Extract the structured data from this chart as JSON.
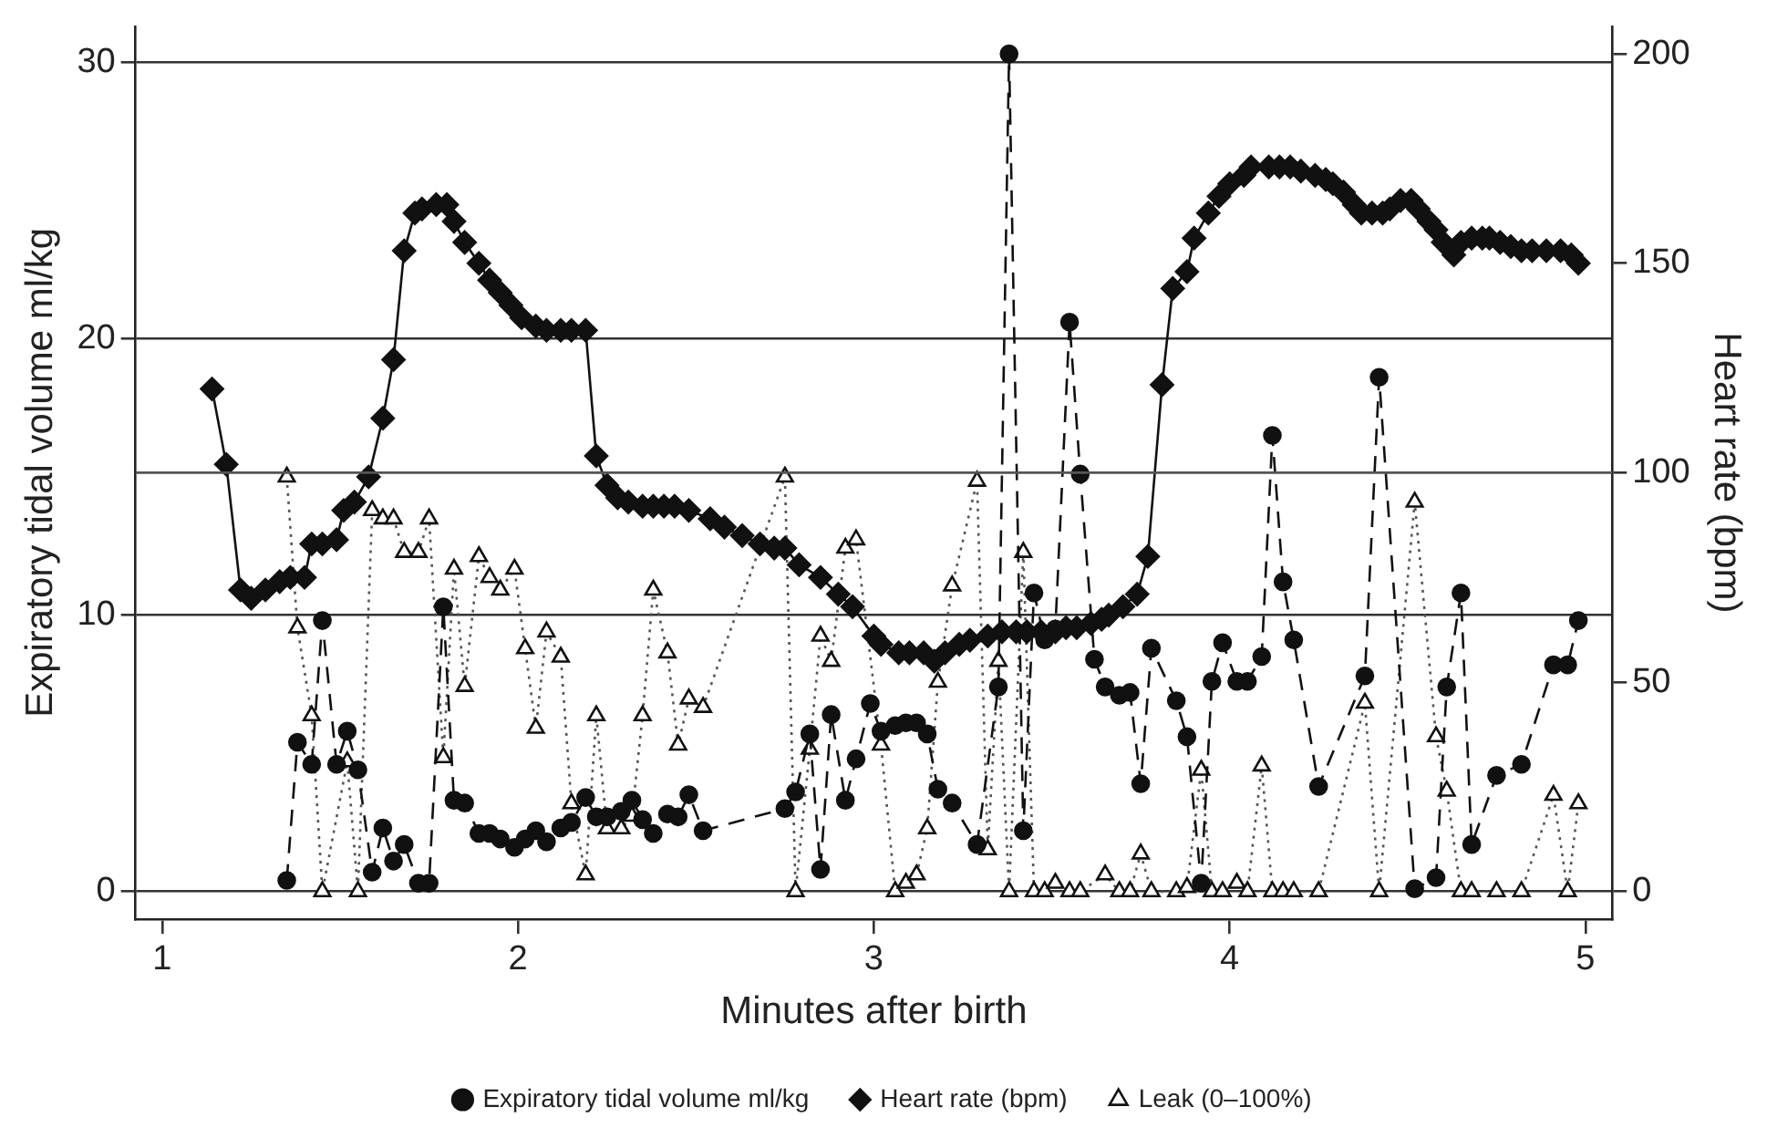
{
  "chart_data": {
    "type": "line",
    "xlabel": "Minutes after birth",
    "ylabel": "Expiratory tidal volume ml/kg",
    "y2label": "Heart rate (bpm)",
    "xlim": [
      0.925,
      5.075
    ],
    "xticks": [
      1,
      2,
      3,
      4,
      5
    ],
    "ylim": [
      -1,
      31.3
    ],
    "yticks": [
      0,
      10,
      20,
      30
    ],
    "y2lim": [
      -6.6,
      206.6
    ],
    "y2ticks": [
      0,
      50,
      100,
      150,
      200
    ],
    "grid": "y",
    "legend": "bottom",
    "ref_lines": [
      {
        "axis": "y2",
        "value": 100,
        "label": null
      }
    ],
    "series": [
      {
        "name": "Expiratory tidal volume ml/kg",
        "color": "#111111",
        "marker": "circle",
        "line_style": "dashed",
        "x": [
          1.35,
          1.38,
          1.42,
          1.45,
          1.49,
          1.52,
          1.55,
          1.59,
          1.62,
          1.65,
          1.68,
          1.72,
          1.75,
          1.79,
          1.82,
          1.85,
          1.89,
          1.92,
          1.95,
          1.99,
          2.02,
          2.05,
          2.08,
          2.12,
          2.15,
          2.19,
          2.22,
          2.25,
          2.29,
          2.32,
          2.35,
          2.38,
          2.42,
          2.45,
          2.48,
          2.52,
          2.75,
          2.78,
          2.82,
          2.85,
          2.88,
          2.92,
          2.95,
          2.99,
          3.02,
          3.06,
          3.09,
          3.12,
          3.15,
          3.18,
          3.22,
          3.29,
          3.35,
          3.38,
          3.42,
          3.45,
          3.48,
          3.51,
          3.55,
          3.58,
          3.62,
          3.65,
          3.69,
          3.72,
          3.75,
          3.78,
          3.85,
          3.88,
          3.92,
          3.95,
          3.98,
          4.02,
          4.05,
          4.09,
          4.12,
          4.15,
          4.18,
          4.25,
          4.38,
          4.42,
          4.52,
          4.58,
          4.61,
          4.65,
          4.68,
          4.75,
          4.82,
          4.91,
          4.95,
          4.98
        ],
        "values": [
          0.4,
          5.4,
          4.6,
          9.8,
          4.6,
          5.8,
          4.4,
          0.7,
          2.3,
          1.1,
          1.7,
          0.3,
          0.3,
          10.3,
          3.3,
          3.2,
          2.1,
          2.1,
          1.9,
          1.6,
          1.9,
          2.2,
          1.8,
          2.3,
          2.5,
          3.4,
          2.7,
          2.7,
          2.9,
          3.3,
          2.6,
          2.1,
          2.8,
          2.7,
          3.5,
          2.2,
          3.0,
          3.6,
          5.7,
          0.8,
          6.4,
          3.3,
          4.8,
          6.8,
          5.8,
          6.0,
          6.1,
          6.1,
          5.7,
          3.7,
          3.2,
          1.7,
          7.4,
          30.3,
          2.2,
          10.8,
          9.1,
          9.5,
          20.6,
          15.1,
          8.4,
          7.4,
          7.1,
          7.2,
          3.9,
          8.8,
          6.9,
          5.6,
          0.3,
          7.6,
          9.0,
          7.6,
          7.6,
          8.5,
          16.5,
          11.2,
          9.1,
          3.8,
          7.8,
          18.6,
          0.1,
          0.5,
          7.4,
          10.8,
          1.7,
          4.2,
          4.6,
          8.2,
          8.2,
          9.8
        ]
      },
      {
        "name": "Heart rate (bpm)",
        "color": "#111111",
        "marker": "diamond",
        "line_style": "solid",
        "axis": "y2",
        "x": [
          1.14,
          1.18,
          1.22,
          1.25,
          1.29,
          1.33,
          1.36,
          1.4,
          1.42,
          1.45,
          1.49,
          1.51,
          1.54,
          1.58,
          1.62,
          1.65,
          1.68,
          1.71,
          1.73,
          1.77,
          1.8,
          1.82,
          1.85,
          1.89,
          1.92,
          1.95,
          1.98,
          2.01,
          2.05,
          2.08,
          2.12,
          2.15,
          2.19,
          2.22,
          2.25,
          2.28,
          2.31,
          2.35,
          2.38,
          2.41,
          2.44,
          2.48,
          2.54,
          2.58,
          2.63,
          2.68,
          2.72,
          2.75,
          2.79,
          2.85,
          2.9,
          2.94,
          3.0,
          3.02,
          3.07,
          3.1,
          3.14,
          3.17,
          3.2,
          3.24,
          3.27,
          3.32,
          3.36,
          3.4,
          3.43,
          3.47,
          3.51,
          3.54,
          3.57,
          3.61,
          3.64,
          3.66,
          3.7,
          3.74,
          3.77,
          3.81,
          3.84,
          3.88,
          3.9,
          3.94,
          3.97,
          4.0,
          4.04,
          4.06,
          4.11,
          4.14,
          4.17,
          4.2,
          4.24,
          4.27,
          4.29,
          4.32,
          4.35,
          4.37,
          4.4,
          4.43,
          4.45,
          4.48,
          4.51,
          4.53,
          4.56,
          4.58,
          4.6,
          4.63,
          4.65,
          4.68,
          4.71,
          4.73,
          4.76,
          4.79,
          4.82,
          4.85,
          4.89,
          4.93,
          4.96,
          4.98
        ],
        "values": [
          120,
          102,
          72,
          70,
          72,
          74,
          75,
          75,
          83,
          83,
          84,
          91,
          93,
          99,
          113,
          127,
          153,
          162,
          163,
          164,
          164,
          160,
          155,
          150,
          146,
          143,
          140,
          137,
          135,
          134,
          134,
          134,
          134,
          104,
          97,
          94,
          93,
          92,
          92,
          92,
          92,
          91,
          89,
          87,
          85,
          83,
          82,
          82,
          78,
          75,
          71,
          68,
          61,
          59,
          57,
          57,
          57,
          55,
          57,
          59,
          60,
          61,
          62,
          62,
          62,
          62,
          62,
          63,
          63,
          64,
          65,
          66,
          68,
          71,
          80,
          121,
          144,
          148,
          156,
          162,
          166,
          169,
          171,
          173,
          173,
          173,
          173,
          172,
          171,
          170,
          169,
          167,
          164,
          162,
          162,
          162,
          163,
          165,
          165,
          163,
          160,
          158,
          155,
          152,
          155,
          156,
          156,
          156,
          155,
          154,
          153,
          153,
          153,
          153,
          152,
          150
        ]
      },
      {
        "name": "Leak (0–100%)",
        "color": "#555555",
        "marker": "triangle",
        "line_style": "dotted",
        "axis": "y2",
        "x": [
          1.35,
          1.38,
          1.42,
          1.45,
          1.52,
          1.55,
          1.59,
          1.62,
          1.65,
          1.68,
          1.72,
          1.75,
          1.79,
          1.82,
          1.85,
          1.89,
          1.92,
          1.95,
          1.99,
          2.02,
          2.05,
          2.08,
          2.12,
          2.15,
          2.19,
          2.22,
          2.25,
          2.29,
          2.32,
          2.35,
          2.38,
          2.42,
          2.45,
          2.48,
          2.52,
          2.75,
          2.78,
          2.82,
          2.85,
          2.88,
          2.92,
          2.95,
          3.02,
          3.06,
          3.09,
          3.12,
          3.15,
          3.18,
          3.22,
          3.29,
          3.32,
          3.35,
          3.38,
          3.42,
          3.45,
          3.48,
          3.51,
          3.55,
          3.58,
          3.65,
          3.69,
          3.72,
          3.75,
          3.78,
          3.85,
          3.88,
          3.92,
          3.95,
          3.98,
          4.02,
          4.05,
          4.09,
          4.12,
          4.15,
          4.18,
          4.25,
          4.38,
          4.42,
          4.52,
          4.58,
          4.61,
          4.65,
          4.68,
          4.75,
          4.82,
          4.91,
          4.95,
          4.98
        ],
        "values": [
          99,
          63,
          42,
          0,
          31,
          0,
          91,
          89,
          89,
          81,
          81,
          89,
          32,
          77,
          49,
          80,
          75,
          72,
          77,
          58,
          39,
          62,
          56,
          21,
          4,
          42,
          15,
          15,
          18,
          42,
          72,
          57,
          35,
          46,
          44,
          99,
          0,
          34,
          61,
          55,
          82,
          84,
          35,
          0,
          2,
          4,
          15,
          50,
          73,
          98,
          10,
          55,
          0,
          81,
          0,
          0,
          2,
          0,
          0,
          4,
          0,
          0,
          9,
          0,
          0,
          1,
          29,
          0,
          0,
          2,
          0,
          30,
          0,
          0,
          0,
          0,
          45,
          0,
          93,
          37,
          24,
          0,
          0,
          0,
          0,
          23,
          0,
          21
        ]
      }
    ]
  }
}
